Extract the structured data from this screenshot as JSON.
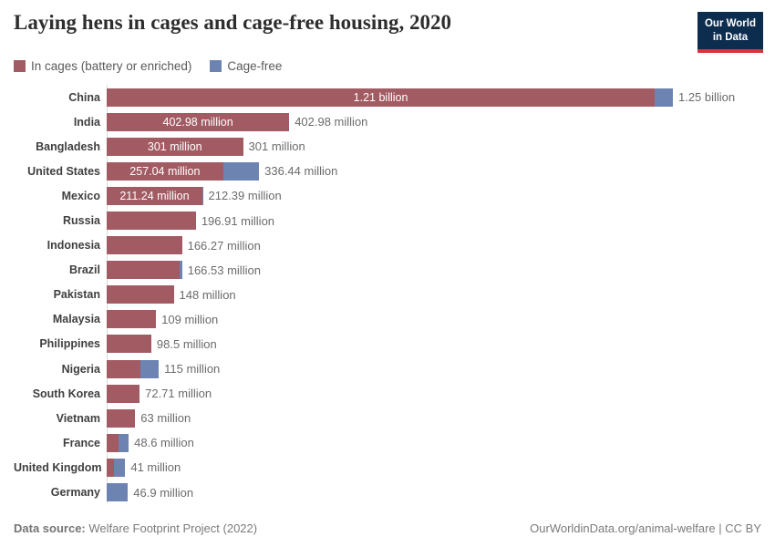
{
  "header": {
    "title": "Laying hens in cages and cage-free housing, 2020",
    "logo_line1": "Our World",
    "logo_line2": "in Data"
  },
  "legend": [
    {
      "label": "In cages (battery or enriched)",
      "color": "#a25b63"
    },
    {
      "label": "Cage-free",
      "color": "#6d84b2"
    }
  ],
  "colors": {
    "cages": "#a25b63",
    "cage_free": "#6d84b2",
    "axis_line": "#dcdcdc",
    "logo_navy": "#0d2d4f",
    "logo_red": "#d7343f"
  },
  "chart_data": {
    "type": "bar",
    "orientation": "horizontal",
    "stacked": true,
    "unit": "hens (millions)",
    "x_max_million": 1250,
    "legend_position": "top-left",
    "grid": false,
    "series_names": [
      "In cages (battery or enriched)",
      "Cage-free"
    ],
    "rows": [
      {
        "country": "China",
        "cages": 1210,
        "cage_free": 40,
        "inside_label": "1.21 billion",
        "total_label": "1.25 billion"
      },
      {
        "country": "India",
        "cages": 402.98,
        "cage_free": 0,
        "inside_label": "402.98 million",
        "total_label": "402.98 million"
      },
      {
        "country": "Bangladesh",
        "cages": 301,
        "cage_free": 0,
        "inside_label": "301 million",
        "total_label": "301 million"
      },
      {
        "country": "United States",
        "cages": 257.04,
        "cage_free": 79.4,
        "inside_label": "257.04 million",
        "total_label": "336.44 million"
      },
      {
        "country": "Mexico",
        "cages": 211.24,
        "cage_free": 1.15,
        "inside_label": "211.24 million",
        "total_label": "212.39 million"
      },
      {
        "country": "Russia",
        "cages": 196.91,
        "cage_free": 0,
        "inside_label": "",
        "total_label": "196.91 million"
      },
      {
        "country": "Indonesia",
        "cages": 166.27,
        "cage_free": 0,
        "inside_label": "",
        "total_label": "166.27 million"
      },
      {
        "country": "Brazil",
        "cages": 162,
        "cage_free": 4.53,
        "inside_label": "",
        "total_label": "166.53 million"
      },
      {
        "country": "Pakistan",
        "cages": 148,
        "cage_free": 0,
        "inside_label": "",
        "total_label": "148 million"
      },
      {
        "country": "Malaysia",
        "cages": 109,
        "cage_free": 0,
        "inside_label": "",
        "total_label": "109 million"
      },
      {
        "country": "Philippines",
        "cages": 98.5,
        "cage_free": 0,
        "inside_label": "",
        "total_label": "98.5 million"
      },
      {
        "country": "Nigeria",
        "cages": 74,
        "cage_free": 41,
        "inside_label": "",
        "total_label": "115 million"
      },
      {
        "country": "South Korea",
        "cages": 72.71,
        "cage_free": 0,
        "inside_label": "",
        "total_label": "72.71 million"
      },
      {
        "country": "Vietnam",
        "cages": 63,
        "cage_free": 0,
        "inside_label": "",
        "total_label": "63 million"
      },
      {
        "country": "France",
        "cages": 26.2,
        "cage_free": 22.4,
        "inside_label": "",
        "total_label": "48.6 million"
      },
      {
        "country": "United Kingdom",
        "cages": 16,
        "cage_free": 25,
        "inside_label": "",
        "total_label": "41 million"
      },
      {
        "country": "Germany",
        "cages": 0,
        "cage_free": 46.9,
        "inside_label": "",
        "total_label": "46.9 million"
      }
    ]
  },
  "footer": {
    "source_label": "Data source:",
    "source_text": " Welfare Footprint Project (2022)",
    "right_text": "OurWorldinData.org/animal-welfare | CC BY"
  }
}
